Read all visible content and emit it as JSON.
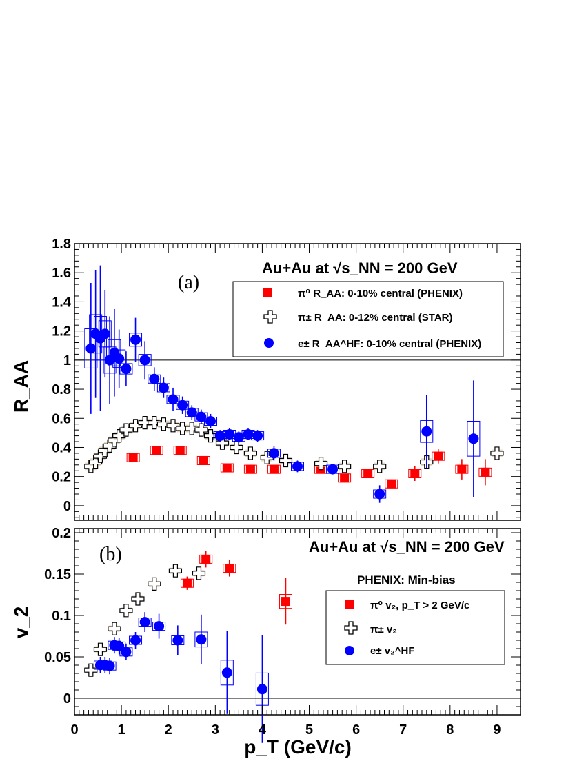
{
  "chart_data": [
    {
      "type": "scatter",
      "panel_label": "(a)",
      "title": "Au+Au at √s_NN = 200 GeV",
      "xlabel": "p_T (GeV/c)",
      "ylabel": "R_AA",
      "xlim": [
        0,
        9.5
      ],
      "ylim": [
        -0.1,
        1.8
      ],
      "yticks": [
        "0",
        "0.2",
        "0.4",
        "0.6",
        "0.8",
        "1",
        "1.2",
        "1.4",
        "1.6",
        "1.8"
      ],
      "reference_line": 1,
      "legend": [
        "π⁰ R_AA: 0-10% central (PHENIX)",
        "π± R_AA: 0-12% central (STAR)",
        "e± R_AA^HF: 0-10% central (PHENIX)"
      ],
      "series": [
        {
          "name": "π⁰ R_AA: 0-10% central (PHENIX)",
          "color": "#ff0000",
          "marker": "square",
          "x": [
            1.25,
            1.75,
            2.25,
            2.75,
            3.25,
            3.75,
            4.25,
            5.25,
            5.75,
            6.25,
            6.75,
            7.25,
            7.75,
            8.25,
            8.75
          ],
          "y": [
            0.33,
            0.38,
            0.38,
            0.31,
            0.26,
            0.25,
            0.25,
            0.25,
            0.19,
            0.22,
            0.15,
            0.22,
            0.34,
            0.25,
            0.23
          ],
          "yerr": [
            0.02,
            0.02,
            0.02,
            0.02,
            0.02,
            0.02,
            0.02,
            0.02,
            0.02,
            0.03,
            0.03,
            0.05,
            0.05,
            0.07,
            0.09
          ]
        },
        {
          "name": "π± R_AA: 0-12% central (STAR)",
          "color": "#000000",
          "marker": "open-cross",
          "x": [
            0.35,
            0.45,
            0.55,
            0.65,
            0.75,
            0.85,
            0.95,
            1.1,
            1.3,
            1.5,
            1.7,
            1.9,
            2.1,
            2.3,
            2.5,
            2.7,
            2.9,
            3.15,
            3.45,
            3.75,
            4.1,
            4.5,
            5.25,
            5.75,
            6.5,
            7.5,
            9.0
          ],
          "y": [
            0.27,
            0.3,
            0.34,
            0.38,
            0.41,
            0.45,
            0.48,
            0.52,
            0.55,
            0.57,
            0.57,
            0.56,
            0.55,
            0.53,
            0.53,
            0.52,
            0.48,
            0.43,
            0.4,
            0.36,
            0.33,
            0.31,
            0.29,
            0.27,
            0.27,
            0.3,
            0.36
          ]
        },
        {
          "name": "e± R_AA^HF: 0-10% central (PHENIX)",
          "color": "#0000ff",
          "marker": "circle",
          "x": [
            0.35,
            0.45,
            0.55,
            0.65,
            0.75,
            0.85,
            0.95,
            1.1,
            1.3,
            1.5,
            1.7,
            1.9,
            2.1,
            2.3,
            2.5,
            2.7,
            2.9,
            3.1,
            3.3,
            3.5,
            3.7,
            3.9,
            4.25,
            4.75,
            5.5,
            6.5,
            7.5,
            8.5
          ],
          "y": [
            1.08,
            1.18,
            1.15,
            1.18,
            1.0,
            1.05,
            1.01,
            0.94,
            1.14,
            1.0,
            0.87,
            0.81,
            0.73,
            0.69,
            0.64,
            0.61,
            0.58,
            0.48,
            0.49,
            0.47,
            0.49,
            0.48,
            0.36,
            0.27,
            0.25,
            0.08,
            0.51,
            0.46
          ],
          "yerr": [
            0.45,
            0.44,
            0.5,
            0.3,
            0.3,
            0.3,
            0.2,
            0.12,
            0.15,
            0.13,
            0.08,
            0.07,
            0.08,
            0.06,
            0.05,
            0.05,
            0.05,
            0.04,
            0.04,
            0.04,
            0.04,
            0.04,
            0.05,
            0.04,
            0.03,
            0.06,
            0.25,
            0.4
          ]
        }
      ]
    },
    {
      "type": "scatter",
      "panel_label": "(b)",
      "title": "Au+Au at √s_NN = 200 GeV",
      "subtitle": "PHENIX: Min-bias",
      "xlabel": "p_T (GeV/c)",
      "ylabel": "v_2",
      "xlim": [
        0,
        9.5
      ],
      "ylim": [
        -0.02,
        0.205
      ],
      "yticks": [
        "0",
        "0.05",
        "0.1",
        "0.15",
        "0.2"
      ],
      "xticks": [
        "0",
        "1",
        "2",
        "3",
        "4",
        "5",
        "6",
        "7",
        "8",
        "9"
      ],
      "reference_line": 0,
      "legend": [
        "π⁰ v₂, p_T > 2 GeV/c",
        "π± v₂",
        "e± v₂^HF"
      ],
      "series": [
        {
          "name": "π⁰ v₂, p_T > 2 GeV/c",
          "color": "#ff0000",
          "marker": "square",
          "x": [
            2.4,
            2.8,
            3.3,
            4.5
          ],
          "y": [
            0.139,
            0.168,
            0.157,
            0.117
          ],
          "yerr": [
            0.008,
            0.01,
            0.01,
            0.028
          ]
        },
        {
          "name": "π± v₂",
          "color": "#000000",
          "marker": "open-cross",
          "x": [
            0.35,
            0.55,
            0.85,
            1.1,
            1.35,
            1.7,
            2.15,
            2.65
          ],
          "y": [
            0.034,
            0.059,
            0.084,
            0.106,
            0.12,
            0.138,
            0.154,
            0.151
          ]
        },
        {
          "name": "e± v₂^HF",
          "color": "#0000ff",
          "marker": "circle",
          "x": [
            0.55,
            0.65,
            0.75,
            0.85,
            0.95,
            1.1,
            1.3,
            1.5,
            1.8,
            2.2,
            2.7,
            3.25,
            4.0
          ],
          "y": [
            0.04,
            0.04,
            0.039,
            0.064,
            0.063,
            0.056,
            0.07,
            0.092,
            0.087,
            0.07,
            0.071,
            0.031,
            0.011
          ],
          "yerr": [
            0.01,
            0.01,
            0.01,
            0.01,
            0.01,
            0.01,
            0.01,
            0.012,
            0.015,
            0.018,
            0.03,
            0.05,
            0.065
          ]
        }
      ]
    }
  ]
}
